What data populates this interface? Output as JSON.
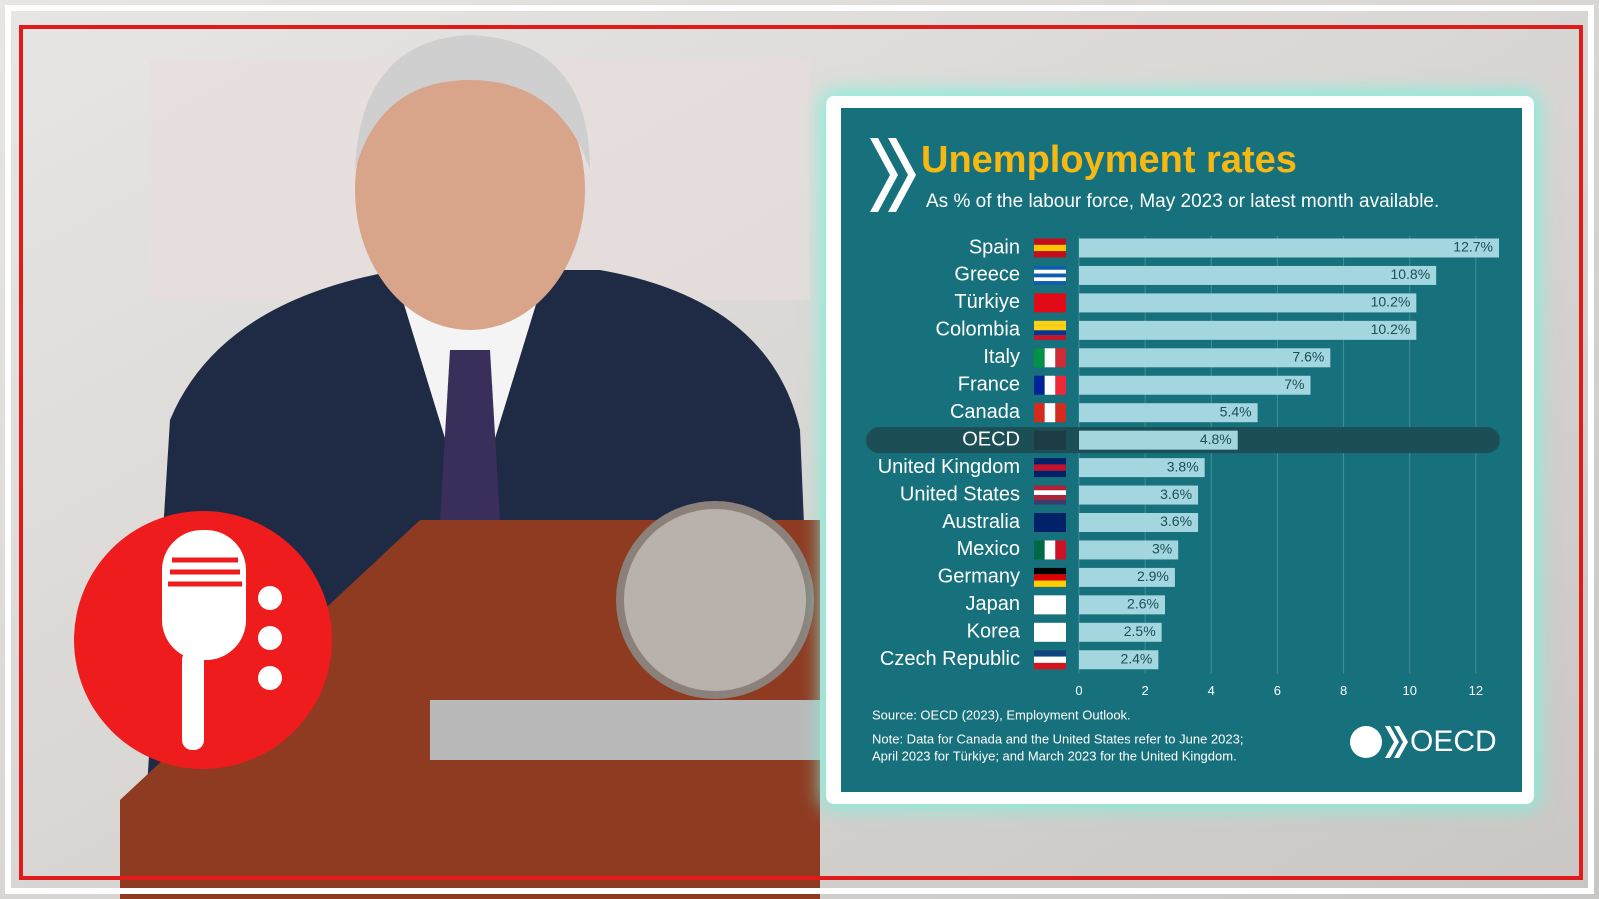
{
  "chart_data": {
    "type": "hbar",
    "title": "Unemployment rates",
    "subtitle": "As % of the labour force, May 2023 or latest month available.",
    "categories": [
      "Spain",
      "Greece",
      "Türkiye",
      "Colombia",
      "Italy",
      "France",
      "Canada",
      "OECD",
      "United Kingdom",
      "United States",
      "Australia",
      "Mexico",
      "Germany",
      "Japan",
      "Korea",
      "Czech Republic"
    ],
    "values": [
      12.7,
      10.8,
      10.2,
      10.2,
      7.6,
      7,
      5.4,
      4.8,
      3.8,
      3.6,
      3.6,
      3,
      2.9,
      2.6,
      2.5,
      2.4
    ],
    "value_labels": [
      "12.7%",
      "10.8%",
      "10.2%",
      "10.2%",
      "7.6%",
      "7%",
      "5.4%",
      "4.8%",
      "3.8%",
      "3.6%",
      "3.6%",
      "3%",
      "2.9%",
      "2.6%",
      "2.5%",
      "2.4%"
    ],
    "color": "#a3d6de",
    "highlight": "OECD",
    "xlim": [
      0,
      12.7
    ],
    "xticks": [
      0,
      2,
      4,
      6,
      8,
      10,
      12
    ],
    "grid": true,
    "source": "Source: OECD (2023), Employment Outlook.",
    "note": [
      "Note: Data for Canada and the United States refer to June 2023;",
      "April 2023 for Türkiye; and March 2023 for the United Kingdom."
    ],
    "logo": "OECD"
  }
}
